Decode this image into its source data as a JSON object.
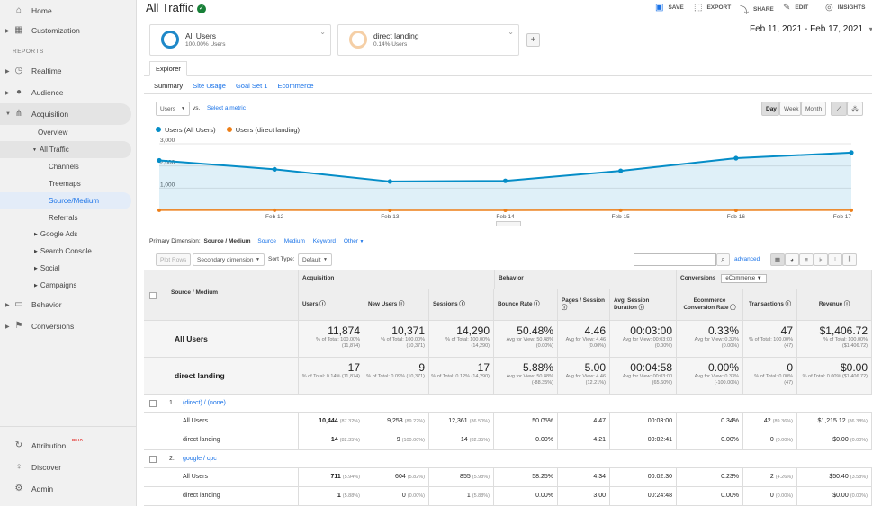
{
  "sidebar": {
    "home": "Home",
    "customization": "Customization",
    "reports_header": "REPORTS",
    "realtime": "Realtime",
    "audience": "Audience",
    "acquisition": "Acquisition",
    "overview": "Overview",
    "all_traffic": "All Traffic",
    "channels": "Channels",
    "treemaps": "Treemaps",
    "source_medium": "Source/Medium",
    "referrals": "Referrals",
    "google_ads": "Google Ads",
    "search_console": "Search Console",
    "social": "Social",
    "campaigns": "Campaigns",
    "behavior": "Behavior",
    "conversions": "Conversions",
    "attribution": "Attribution",
    "beta": "BETA",
    "discover": "Discover",
    "admin": "Admin"
  },
  "header": {
    "title": "All Traffic",
    "save": "SAVE",
    "export": "EXPORT",
    "share": "SHARE",
    "edit": "EDIT",
    "insights": "INSIGHTS",
    "date_range": "Feb 11, 2021 - Feb 17, 2021"
  },
  "segments": [
    {
      "name": "All Users",
      "pct": "100.00% Users",
      "color": "#1e88c8"
    },
    {
      "name": "direct landing",
      "pct": "0.14% Users",
      "color": "#f5cfa6"
    }
  ],
  "explorer": {
    "tab": "Explorer",
    "subtabs": [
      "Summary",
      "Site Usage",
      "Goal Set 1",
      "Ecommerce"
    ],
    "metric": "Users",
    "vs": "vs.",
    "select_metric": "Select a metric",
    "day": "Day",
    "week": "Week",
    "month": "Month"
  },
  "chart_data": {
    "type": "line",
    "x": [
      "",
      "Feb 12",
      "Feb 13",
      "Feb 14",
      "Feb 15",
      "Feb 16",
      "Feb 17"
    ],
    "series": [
      {
        "name": "Users (All Users)",
        "color": "#058dc7",
        "values": [
          2250,
          1850,
          1300,
          1330,
          1780,
          2350,
          2600
        ]
      },
      {
        "name": "Users (direct landing)",
        "color": "#ed7e17",
        "values": [
          5,
          3,
          2,
          2,
          3,
          2,
          3
        ]
      }
    ],
    "yticks": [
      "3,000",
      "2,000",
      "1,000"
    ],
    "ylim": [
      0,
      3000
    ]
  },
  "dimension": {
    "label": "Primary Dimension:",
    "current": "Source / Medium",
    "opts": [
      "Source",
      "Medium",
      "Keyword",
      "Other"
    ],
    "plot_rows": "Plot Rows",
    "secondary": "Secondary dimension",
    "sort_type": "Sort Type:",
    "sort_val": "Default",
    "advanced": "advanced"
  },
  "table": {
    "col_source": "Source / Medium",
    "grp_acq": "Acquisition",
    "grp_beh": "Behavior",
    "grp_conv": "Conversions",
    "conv_sel": "eCommerce",
    "cols": [
      "Users",
      "New Users",
      "Sessions",
      "Bounce Rate",
      "Pages / Session",
      "Avg. Session Duration",
      "Ecommerce Conversion Rate",
      "Transactions",
      "Revenue"
    ],
    "summary": [
      {
        "label": "All Users",
        "vals": [
          "11,874",
          "10,371",
          "14,290",
          "50.48%",
          "4.46",
          "00:03:00",
          "0.33%",
          "47",
          "$1,406.72"
        ],
        "subs": [
          "% of Total: 100.00% (11,874)",
          "% of Total: 100.00% (10,371)",
          "% of Total: 100.00% (14,290)",
          "Avg for View: 50.48% (0.00%)",
          "Avg for View: 4.46 (0.00%)",
          "Avg for View: 00:03:00 (0.00%)",
          "Avg for View: 0.33% (0.00%)",
          "% of Total: 100.00% (47)",
          "% of Total: 100.00% ($1,406.72)"
        ]
      },
      {
        "label": "direct landing",
        "vals": [
          "17",
          "9",
          "17",
          "5.88%",
          "5.00",
          "00:04:58",
          "0.00%",
          "0",
          "$0.00"
        ],
        "subs": [
          "% of Total: 0.14% (11,874)",
          "% of Total: 0.09% (10,371)",
          "% of Total: 0.12% (14,290)",
          "Avg for View: 50.48% (-88.35%)",
          "Avg for View: 4.46 (12.21%)",
          "Avg for View: 00:03:00 (65.60%)",
          "Avg for View: 0.33% (-100.00%)",
          "% of Total: 0.00% (47)",
          "% of Total: 0.00% ($1,406.72)"
        ]
      }
    ],
    "rows": [
      {
        "idx": "1.",
        "name": "(direct) / (none)",
        "subrows": [
          {
            "label": "All Users",
            "vals": [
              "10,444",
              "9,253",
              "12,361",
              "50.05%",
              "4.47",
              "00:03:00",
              "0.34%",
              "42",
              "$1,215.12"
            ],
            "pcts": [
              "(87.32%)",
              "(89.22%)",
              "(86.50%)",
              "",
              "",
              "",
              "",
              "(89.36%)",
              "(86.38%)"
            ]
          },
          {
            "label": "direct landing",
            "vals": [
              "14",
              "9",
              "14",
              "0.00%",
              "4.21",
              "00:02:41",
              "0.00%",
              "0",
              "$0.00"
            ],
            "pcts": [
              "(82.35%)",
              "(100.00%)",
              "(82.35%)",
              "",
              "",
              "",
              "",
              "(0.00%)",
              "(0.00%)"
            ]
          }
        ]
      },
      {
        "idx": "2.",
        "name": "google / cpc",
        "subrows": [
          {
            "label": "All Users",
            "vals": [
              "711",
              "604",
              "855",
              "58.25%",
              "4.34",
              "00:02:30",
              "0.23%",
              "2",
              "$50.40"
            ],
            "pcts": [
              "(5.94%)",
              "(5.82%)",
              "(5.98%)",
              "",
              "",
              "",
              "",
              "(4.26%)",
              "(3.58%)"
            ]
          },
          {
            "label": "direct landing",
            "vals": [
              "1",
              "0",
              "1",
              "0.00%",
              "3.00",
              "00:24:48",
              "0.00%",
              "0",
              "$0.00"
            ],
            "pcts": [
              "(5.88%)",
              "(0.00%)",
              "(5.88%)",
              "",
              "",
              "",
              "",
              "(0.00%)",
              "(0.00%)"
            ]
          }
        ]
      }
    ]
  }
}
